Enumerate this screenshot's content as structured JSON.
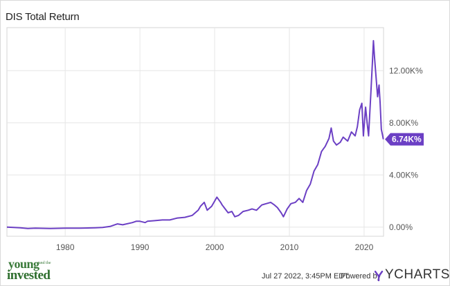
{
  "chart_data": {
    "type": "line",
    "title": "DIS Total Return",
    "xlim": [
      1972.2,
      2022.6
    ],
    "ylim": [
      -0.7,
      15.3
    ],
    "x_ticks": [
      1980,
      1990,
      2000,
      2010,
      2020
    ],
    "x_tick_labels": [
      "1980",
      "1990",
      "2000",
      "2010",
      "2020"
    ],
    "y_ticks": [
      0,
      4,
      8,
      12
    ],
    "y_tick_labels": [
      "0.00%",
      "4.00K%",
      "8.00K%",
      "12.00K%"
    ],
    "y_unit": "K%",
    "grid": true,
    "line_color": "#6b3fc4",
    "series": [
      {
        "x": [
          1972.2,
          1974,
          1975,
          1976,
          1978,
          1980,
          1982,
          1984,
          1985,
          1986,
          1987,
          1987.7,
          1988,
          1989,
          1989.5,
          1990,
          1990.7,
          1991,
          1992,
          1993,
          1994,
          1995,
          1996,
          1997,
          1997.8,
          1998.1,
          1998.6,
          1999,
          1999.6,
          2000,
          2000.3,
          2000.8,
          2001,
          2001.4,
          2001.8,
          2002.3,
          2002.7,
          2003.2,
          2003.8,
          2004.5,
          2005,
          2005.6,
          2006.3,
          2006.9,
          2007.5,
          2008,
          2008.4,
          2008.9,
          2009.2,
          2009.7,
          2010.2,
          2010.8,
          2011.3,
          2011.8,
          2012.3,
          2012.8,
          2013.3,
          2013.8,
          2014.3,
          2014.8,
          2015.3,
          2015.6,
          2015.9,
          2016.3,
          2016.8,
          2017.2,
          2017.8,
          2018.3,
          2018.8,
          2019.1,
          2019.4,
          2019.7,
          2019.9,
          2020.2,
          2020.4,
          2020.6,
          2020.9,
          2021.1,
          2021.25,
          2021.4,
          2021.6,
          2021.8,
          2022.0,
          2022.15,
          2022.3,
          2022.45,
          2022.57
        ],
        "y": [
          0.0,
          -0.05,
          -0.1,
          -0.08,
          -0.1,
          -0.08,
          -0.08,
          -0.05,
          -0.02,
          0.05,
          0.25,
          0.18,
          0.22,
          0.35,
          0.45,
          0.45,
          0.35,
          0.45,
          0.5,
          0.55,
          0.55,
          0.7,
          0.75,
          0.9,
          1.3,
          1.6,
          1.9,
          1.3,
          1.6,
          2.0,
          2.3,
          1.9,
          1.7,
          1.4,
          1.1,
          1.2,
          0.8,
          0.9,
          1.2,
          1.3,
          1.4,
          1.3,
          1.7,
          1.8,
          1.9,
          1.7,
          1.5,
          1.1,
          0.8,
          1.4,
          1.8,
          1.9,
          2.2,
          1.9,
          2.8,
          3.3,
          4.3,
          4.8,
          5.8,
          6.2,
          6.8,
          7.6,
          6.6,
          6.3,
          6.5,
          6.9,
          6.6,
          7.3,
          7.0,
          7.7,
          9.0,
          9.5,
          7.0,
          9.2,
          8.0,
          7.0,
          10.3,
          12.5,
          14.3,
          13.0,
          11.5,
          10.0,
          10.9,
          9.5,
          7.5,
          7.1,
          6.74
        ]
      }
    ],
    "last_value_label": "6.74K%",
    "last_value": 6.74
  },
  "footer": {
    "date": "Jul 27 2022, 3:45PM EDT.",
    "powered_by": "Powered by",
    "brand": "YCHARTS"
  },
  "logo": {
    "line1": "young",
    "line2": "and the",
    "line3": "invested"
  }
}
